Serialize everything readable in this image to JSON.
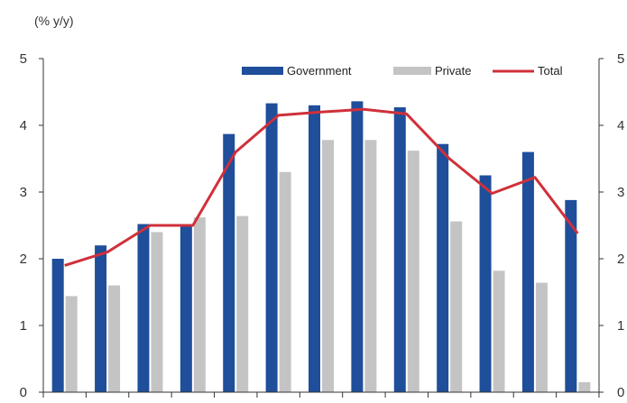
{
  "chart_data": {
    "type": "bar",
    "unit_label": "(% y/y)",
    "ylim": [
      0,
      5
    ],
    "yticks": [
      "0",
      "1",
      "2",
      "3",
      "4",
      "5"
    ],
    "right_yticks": [
      "0",
      "1",
      "2",
      "3",
      "4",
      "5"
    ],
    "legend": {
      "placement": "top-right"
    },
    "categories_count": 13,
    "series": [
      {
        "name": "Government",
        "type": "bar",
        "color": "#1f4e9a",
        "values": [
          2.0,
          2.2,
          2.52,
          2.5,
          3.87,
          4.33,
          4.3,
          4.36,
          4.27,
          3.72,
          3.25,
          3.6,
          2.88
        ]
      },
      {
        "name": "Private",
        "type": "bar",
        "color": "#c4c4c4",
        "values": [
          1.44,
          1.6,
          2.4,
          2.62,
          2.64,
          3.3,
          3.78,
          3.78,
          3.62,
          2.56,
          1.82,
          1.64,
          0.15
        ]
      },
      {
        "name": "Total",
        "type": "line",
        "color": "#d0303a",
        "values": [
          1.9,
          2.1,
          2.5,
          2.5,
          3.6,
          4.15,
          4.2,
          4.24,
          4.17,
          3.5,
          2.98,
          3.22,
          2.38
        ]
      }
    ],
    "grid": false
  }
}
